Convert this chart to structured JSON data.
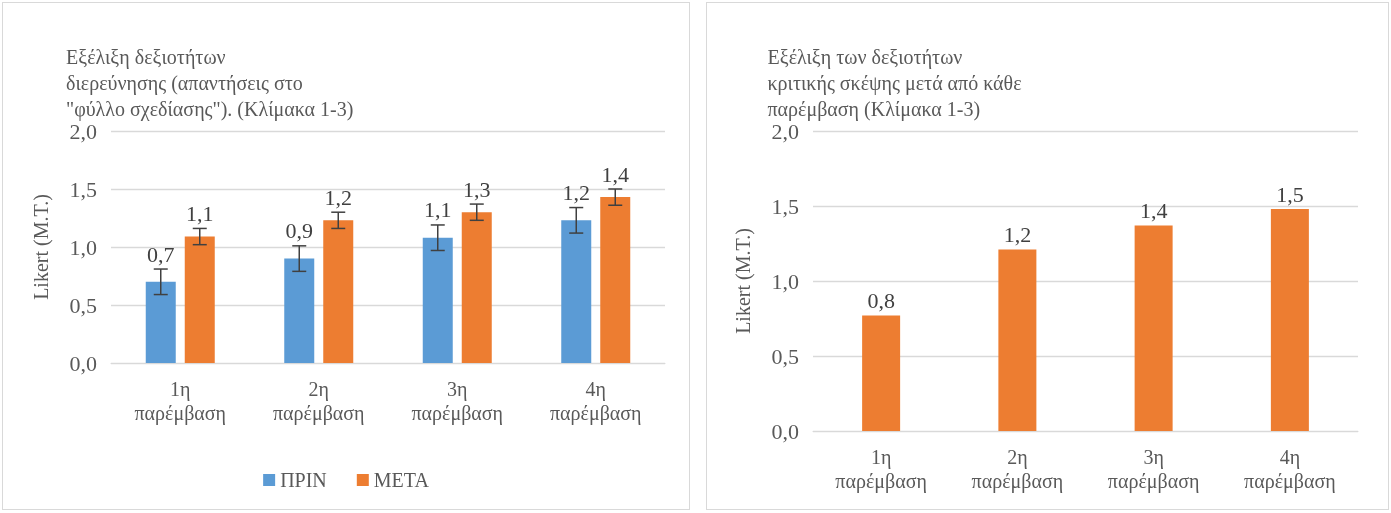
{
  "chart_data": [
    {
      "type": "bar",
      "title": "Εξέλιξη δεξιοτήτων διερεύνησης (απαντήσεις στο \"φύλλο σχεδίασης\"). (Κλίμακα 1-3)",
      "ylabel": "Likert (M.T.)",
      "categories": [
        "1η παρέμβαση",
        "2η παρέμβαση",
        "3η παρέμβαση",
        "4η παρέμβαση"
      ],
      "series": [
        {
          "name": "ΠΡΙΝ",
          "color": "#5b9bd5",
          "values": [
            0.7,
            0.9,
            1.08,
            1.23
          ],
          "errors": [
            0.11,
            0.11,
            0.11,
            0.11
          ],
          "value_labels": [
            "0,7",
            "0,9",
            "1,1",
            "1,2"
          ]
        },
        {
          "name": "ΜΕΤΑ",
          "color": "#ed7d31",
          "values": [
            1.09,
            1.23,
            1.3,
            1.43
          ],
          "errors": [
            0.07,
            0.07,
            0.07,
            0.07
          ],
          "value_labels": [
            "1,1",
            "1,2",
            "1,3",
            "1,4"
          ]
        }
      ],
      "ylim": [
        0,
        2
      ],
      "yticks": [
        {
          "value": 0,
          "label": "0,0"
        },
        {
          "value": 0.5,
          "label": "0,5"
        },
        {
          "value": 1,
          "label": "1,0"
        },
        {
          "value": 1.5,
          "label": "1,5"
        },
        {
          "value": 2,
          "label": "2,0"
        }
      ],
      "grid": "y",
      "legend": "bottom"
    },
    {
      "type": "bar",
      "title": "Εξέλιξη των δεξιοτήτων κριτικής σκέψης μετά από κάθε παρέμβαση (Κλίμακα 1-3)",
      "ylabel": "Likert (M.T.)",
      "categories": [
        "1η παρέμβαση",
        "2η παρέμβαση",
        "3η παρέμβαση",
        "4η παρέμβαση"
      ],
      "series": [
        {
          "color": "#ed7d31",
          "values": [
            0.77,
            1.21,
            1.37,
            1.48
          ],
          "value_labels": [
            "0,8",
            "1,2",
            "1,4",
            "1,5"
          ]
        }
      ],
      "ylim": [
        0,
        2
      ],
      "yticks": [
        {
          "value": 0,
          "label": "0,0"
        },
        {
          "value": 0.5,
          "label": "0,5"
        },
        {
          "value": 1,
          "label": "1,0"
        },
        {
          "value": 1.5,
          "label": "1,5"
        },
        {
          "value": 2,
          "label": "2,0"
        }
      ],
      "grid": "y",
      "legend": false
    }
  ]
}
